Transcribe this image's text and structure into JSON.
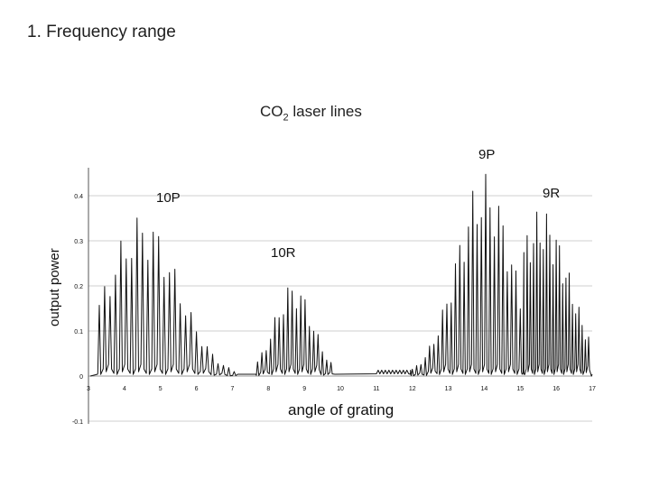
{
  "slide": {
    "title": "1. Frequency range",
    "subtitle_prefix": "CO",
    "subtitle_sub": "2",
    "subtitle_suffix": " laser lines"
  },
  "chart_data": {
    "type": "line",
    "title": "CO2 laser lines",
    "xlabel": "angle of grating",
    "ylabel": "output power",
    "xlim": [
      3,
      17
    ],
    "ylim": [
      -0.1,
      0.45
    ],
    "x_ticks": [
      "3",
      "4",
      "5",
      "6",
      "7",
      "8",
      "9",
      "10",
      "11",
      "12",
      "13",
      "14",
      "15",
      "16",
      "17"
    ],
    "y_ticks": [
      {
        "value": 0.4,
        "label": "0.4"
      },
      {
        "value": 0.3,
        "label": "0.3"
      },
      {
        "value": 0.2,
        "label": "0.2"
      },
      {
        "value": 0.1,
        "label": "0.1"
      },
      {
        "value": 0.0,
        "label": "0"
      },
      {
        "value": -0.1,
        "label": "-0.1"
      }
    ],
    "bands": [
      {
        "name": "10P",
        "range": [
          3.3,
          7.1
        ],
        "peak_x": 4.5,
        "peak": 0.36,
        "width": 1.4,
        "spacing": 0.15
      },
      {
        "name": "10R",
        "range": [
          7.7,
          9.8
        ],
        "peak_x": 8.7,
        "peak": 0.21,
        "width": 0.75,
        "spacing": 0.12
      },
      {
        "name": "9P",
        "range": [
          12.0,
          15.05
        ],
        "peak_x": 14.0,
        "peak": 0.45,
        "width": 1.1,
        "spacing": 0.12
      },
      {
        "name": "9R",
        "range": [
          15.1,
          16.95
        ],
        "peak_x": 15.6,
        "peak": 0.37,
        "width": 1.1,
        "spacing": 0.09
      }
    ],
    "annotations": [
      {
        "text": "9P",
        "near_x": 14.0
      },
      {
        "text": "9R",
        "near_x": 16.4
      },
      {
        "text": "10P",
        "near_x": 5.2
      },
      {
        "text": "10R",
        "near_x": 8.3
      }
    ]
  }
}
